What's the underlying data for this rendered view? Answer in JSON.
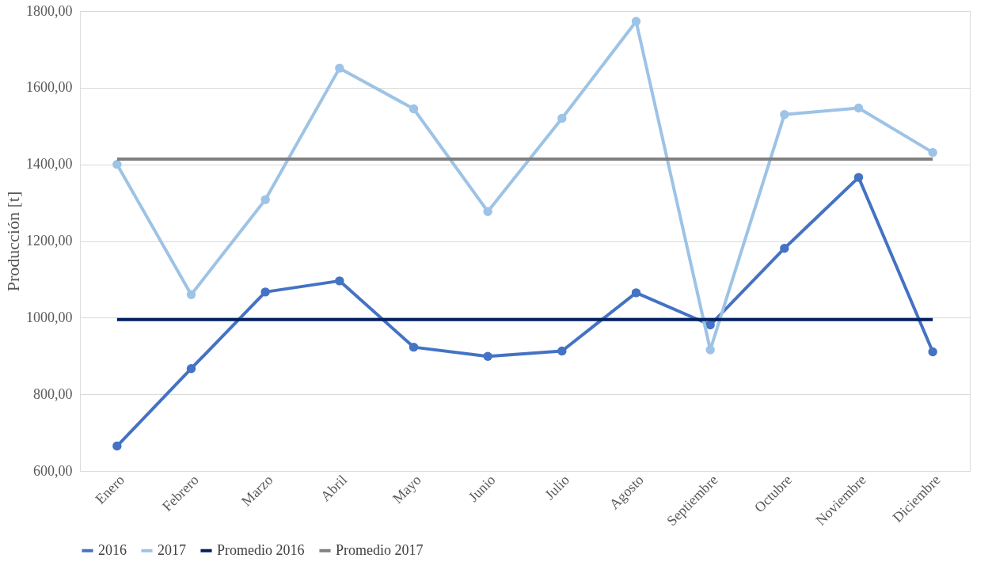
{
  "chart_data": {
    "type": "line",
    "ylabel": "Producción [t]",
    "categories": [
      "Enero",
      "Febrero",
      "Marzo",
      "Abril",
      "Mayo",
      "Junio",
      "Julio",
      "Agosto",
      "Septiembre",
      "Octubre",
      "Noviembre",
      "Diciembre"
    ],
    "series": [
      {
        "name": "2016",
        "color": "#4472c4",
        "marker": "circle",
        "values": [
          665,
          867,
          1067,
          1096,
          923,
          899,
          913,
          1065,
          981,
          1181,
          1366,
          911
        ]
      },
      {
        "name": "2017",
        "color": "#9dc3e6",
        "marker": "circle",
        "values": [
          1400,
          1060,
          1308,
          1651,
          1545,
          1277,
          1520,
          1773,
          916,
          1530,
          1547,
          1431
        ]
      },
      {
        "name": "Promedio 2016",
        "color": "#002060",
        "marker": "none",
        "values": [
          995,
          995,
          995,
          995,
          995,
          995,
          995,
          995,
          995,
          995,
          995,
          995
        ]
      },
      {
        "name": "Promedio 2017",
        "color": "#808080",
        "marker": "none",
        "values": [
          1414,
          1414,
          1414,
          1414,
          1414,
          1414,
          1414,
          1414,
          1414,
          1414,
          1414,
          1414
        ]
      }
    ],
    "ylim": [
      600,
      1800
    ],
    "yticks": [
      {
        "value": 600,
        "label": "600,00"
      },
      {
        "value": 800,
        "label": "800,00"
      },
      {
        "value": 1000,
        "label": "1000,00"
      },
      {
        "value": 1200,
        "label": "1200,00"
      },
      {
        "value": 1400,
        "label": "1400,00"
      },
      {
        "value": 1600,
        "label": "1600,00"
      },
      {
        "value": 1800,
        "label": "1800,00"
      }
    ],
    "grid": "y",
    "legend": "bottom",
    "line_style": "solid"
  }
}
